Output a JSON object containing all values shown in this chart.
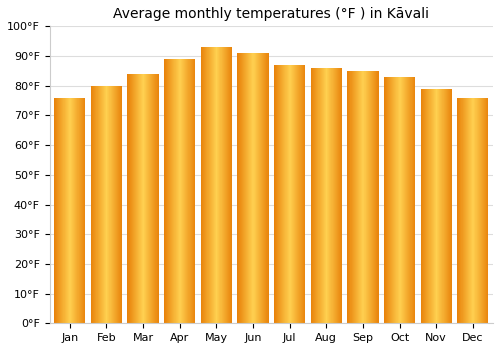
{
  "title": "Average monthly temperatures (°F ) in Kāvali",
  "months": [
    "Jan",
    "Feb",
    "Mar",
    "Apr",
    "May",
    "Jun",
    "Jul",
    "Aug",
    "Sep",
    "Oct",
    "Nov",
    "Dec"
  ],
  "temperatures": [
    76,
    80,
    84,
    89,
    93,
    91,
    87,
    86,
    85,
    83,
    79,
    76
  ],
  "bar_color_left": "#E8820A",
  "bar_color_center": "#FFD050",
  "bar_color_right": "#E8820A",
  "ylim": [
    0,
    100
  ],
  "yticks": [
    0,
    10,
    20,
    30,
    40,
    50,
    60,
    70,
    80,
    90,
    100
  ],
  "ytick_labels": [
    "0°F",
    "10°F",
    "20°F",
    "30°F",
    "40°F",
    "50°F",
    "60°F",
    "70°F",
    "80°F",
    "90°F",
    "100°F"
  ],
  "background_color": "#ffffff",
  "grid_color": "#dddddd",
  "title_fontsize": 10,
  "tick_fontsize": 8,
  "bar_width": 0.85
}
